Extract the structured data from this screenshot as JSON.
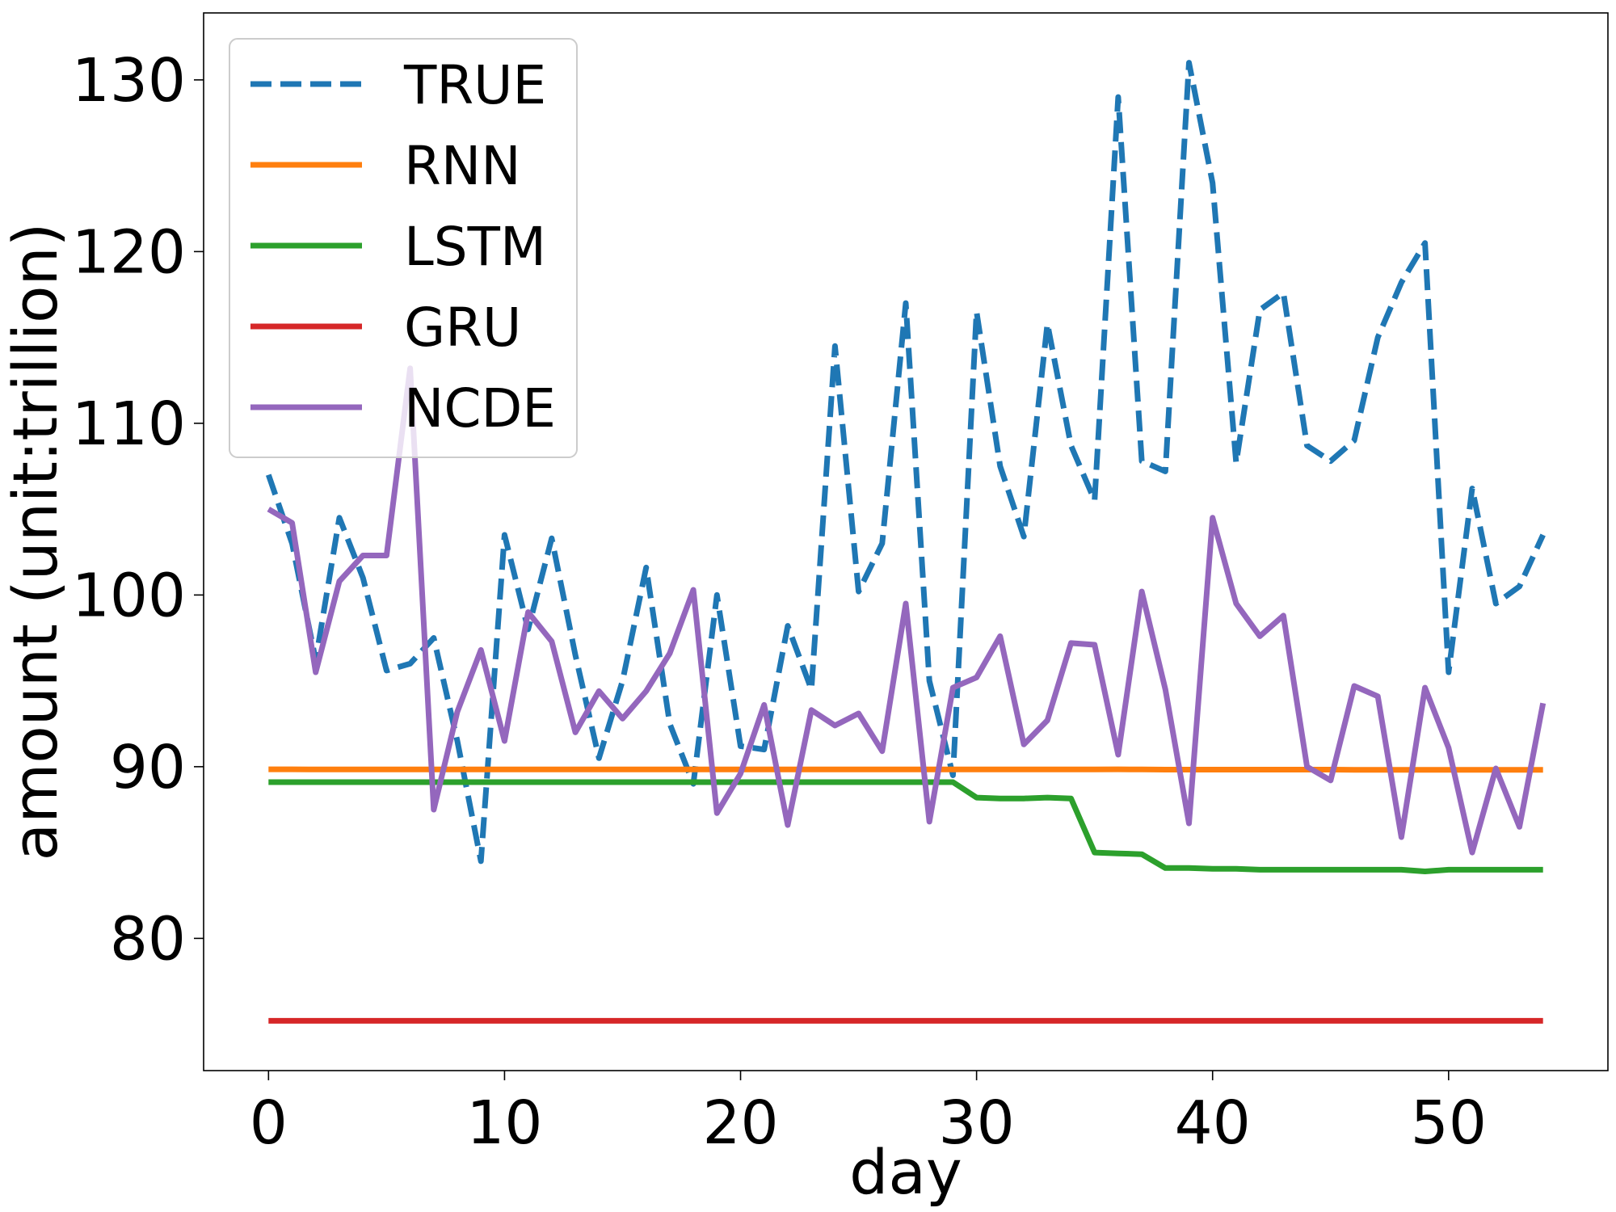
{
  "chart_data": {
    "type": "line",
    "title": "",
    "xlabel": "day",
    "ylabel": "amount (unit:trillion)",
    "xlim": [
      -2.75,
      56.75
    ],
    "ylim": [
      72.3,
      133.9
    ],
    "xticks": [
      0,
      10,
      20,
      30,
      40,
      50
    ],
    "yticks": [
      80,
      90,
      100,
      110,
      120,
      130
    ],
    "grid": false,
    "legend": "upper left",
    "x": [
      0,
      1,
      2,
      3,
      4,
      5,
      6,
      7,
      8,
      9,
      10,
      11,
      12,
      13,
      14,
      15,
      16,
      17,
      18,
      19,
      20,
      21,
      22,
      23,
      24,
      25,
      26,
      27,
      28,
      29,
      30,
      31,
      32,
      33,
      34,
      35,
      36,
      37,
      38,
      39,
      40,
      41,
      42,
      43,
      44,
      45,
      46,
      47,
      48,
      49,
      50,
      51,
      52,
      53,
      54
    ],
    "series": [
      {
        "name": "TRUE",
        "color": "#1f77b4",
        "dash": "dashed",
        "values": [
          107.0,
          103.0,
          96.2,
          104.5,
          101.0,
          95.6,
          96.0,
          97.5,
          91.5,
          84.5,
          103.5,
          98.0,
          103.3,
          96.5,
          90.5,
          95.0,
          101.6,
          92.5,
          89.0,
          100.0,
          91.2,
          91.0,
          98.2,
          94.5,
          114.5,
          100.2,
          103.0,
          117.0,
          95.0,
          89.5,
          116.5,
          107.5,
          103.4,
          115.8,
          108.7,
          105.5,
          129.0,
          107.8,
          107.2,
          131.0,
          124.0,
          107.7,
          116.6,
          117.6,
          108.7,
          107.8,
          109.0,
          115.0,
          118.2,
          120.5,
          95.5,
          106.2,
          99.5,
          100.5,
          103.5
        ]
      },
      {
        "name": "RNN",
        "color": "#ff7f0e",
        "dash": "solid",
        "values": [
          89.85,
          89.85,
          89.84,
          89.84,
          89.84,
          89.84,
          89.84,
          89.84,
          89.84,
          89.84,
          89.84,
          89.84,
          89.84,
          89.84,
          89.84,
          89.84,
          89.84,
          89.84,
          89.84,
          89.84,
          89.84,
          89.84,
          89.84,
          89.84,
          89.84,
          89.84,
          89.84,
          89.84,
          89.84,
          89.84,
          89.84,
          89.84,
          89.84,
          89.84,
          89.84,
          89.84,
          89.85,
          89.84,
          89.83,
          89.83,
          89.83,
          89.83,
          89.83,
          89.83,
          89.83,
          89.83,
          89.82,
          89.82,
          89.82,
          89.82,
          89.82,
          89.82,
          89.82,
          89.82,
          89.82
        ]
      },
      {
        "name": "LSTM",
        "color": "#2ca02c",
        "dash": "solid",
        "values": [
          89.1,
          89.1,
          89.1,
          89.1,
          89.1,
          89.1,
          89.1,
          89.1,
          89.1,
          89.1,
          89.1,
          89.1,
          89.1,
          89.1,
          89.1,
          89.1,
          89.1,
          89.1,
          89.1,
          89.1,
          89.1,
          89.1,
          89.1,
          89.1,
          89.1,
          89.1,
          89.1,
          89.1,
          89.1,
          89.1,
          88.2,
          88.15,
          88.15,
          88.2,
          88.15,
          85.0,
          84.95,
          84.9,
          84.1,
          84.1,
          84.05,
          84.05,
          84.0,
          84.0,
          84.0,
          84.0,
          84.0,
          84.0,
          84.0,
          83.9,
          84.0,
          84.0,
          84.0,
          84.0,
          84.0
        ]
      },
      {
        "name": "GRU",
        "color": "#d62728",
        "dash": "solid",
        "values": [
          75.2,
          75.2,
          75.2,
          75.2,
          75.2,
          75.2,
          75.2,
          75.2,
          75.2,
          75.2,
          75.2,
          75.2,
          75.2,
          75.2,
          75.2,
          75.2,
          75.2,
          75.2,
          75.2,
          75.2,
          75.2,
          75.2,
          75.2,
          75.2,
          75.2,
          75.2,
          75.2,
          75.2,
          75.2,
          75.2,
          75.2,
          75.2,
          75.2,
          75.2,
          75.2,
          75.2,
          75.2,
          75.2,
          75.2,
          75.2,
          75.2,
          75.2,
          75.2,
          75.2,
          75.2,
          75.2,
          75.2,
          75.2,
          75.2,
          75.2,
          75.2,
          75.2,
          75.2,
          75.2,
          75.2
        ]
      },
      {
        "name": "NCDE",
        "color": "#9467bd",
        "dash": "solid",
        "values": [
          105.0,
          104.2,
          95.5,
          100.8,
          102.3,
          102.3,
          113.2,
          87.5,
          93.2,
          96.8,
          91.5,
          99.0,
          97.3,
          92.0,
          94.4,
          92.8,
          94.4,
          96.6,
          100.3,
          87.3,
          89.6,
          93.6,
          86.6,
          93.3,
          92.4,
          93.1,
          90.9,
          99.5,
          86.8,
          94.6,
          95.2,
          97.6,
          91.3,
          92.7,
          97.2,
          97.1,
          90.7,
          100.2,
          94.5,
          86.7,
          104.5,
          99.5,
          97.6,
          98.8,
          90.0,
          89.2,
          94.7,
          94.1,
          85.9,
          94.6,
          91.1,
          85.0,
          89.9,
          86.5,
          93.7
        ]
      }
    ]
  }
}
